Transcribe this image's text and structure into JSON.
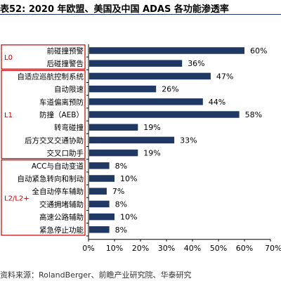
{
  "header": {
    "title": "表52: 2020 年欧盟、美国及中国 ADAS 各功能渗透率"
  },
  "footer": {
    "source": "资料来源：RolandBerger、前瞻产业研究院、华泰研究"
  },
  "colors": {
    "bar": "#1f3864",
    "group_label": "#c00000",
    "group_box": "#c00000",
    "axis": "#000000"
  },
  "chart_data": {
    "type": "bar",
    "orientation": "horizontal",
    "categories": [
      "前碰撞预警",
      "后碰撞警告",
      "自适应巡航控制系统",
      "自动限速",
      "车道偏离预防",
      "防撞（AEB）",
      "转弯碰撞",
      "后方交叉交通协助",
      "交叉口助手",
      "ACC与自动变道",
      "自动紧急转向和制动",
      "全自动停车辅助",
      "交通拥堵辅助",
      "高速公路辅助",
      "紧急停止功能"
    ],
    "values": [
      60,
      36,
      47,
      26,
      44,
      58,
      19,
      33,
      19,
      8,
      10,
      7,
      8,
      10,
      8
    ],
    "value_labels": [
      "60%",
      "36%",
      "47%",
      "26%",
      "44%",
      "58%",
      "19%",
      "33%",
      "19%",
      "8%",
      "10%",
      "7%",
      "8%",
      "10%",
      "8%"
    ],
    "groups": [
      {
        "label": "L0",
        "start": 0,
        "end": 1
      },
      {
        "label": "L1",
        "start": 2,
        "end": 8
      },
      {
        "label": "L2/L2+",
        "start": 9,
        "end": 14
      }
    ],
    "xlim": [
      0,
      70
    ],
    "xticks": [
      "0%",
      "10%",
      "20%",
      "30%",
      "40%",
      "50%",
      "60%",
      "70%"
    ],
    "grid": false,
    "title": "2020 年欧盟、美国及中国 ADAS 各功能渗透率",
    "xlabel": "",
    "ylabel": ""
  }
}
